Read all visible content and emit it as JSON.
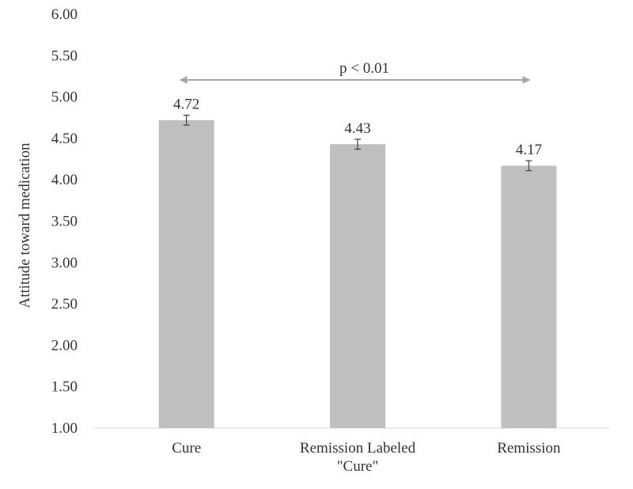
{
  "chart_data": {
    "type": "bar",
    "title": "",
    "xlabel": "",
    "ylabel": "Attitude toward medication",
    "ylim": [
      1.0,
      6.0
    ],
    "y_ticks": [
      "1.00",
      "1.50",
      "2.00",
      "2.50",
      "3.00",
      "3.50",
      "4.00",
      "4.50",
      "5.00",
      "5.50",
      "6.00"
    ],
    "categories": [
      [
        "Cure"
      ],
      [
        "Remission Labeled",
        "\"Cure\""
      ],
      [
        "Remission"
      ]
    ],
    "values": [
      4.72,
      4.43,
      4.17
    ],
    "value_labels": [
      "4.72",
      "4.43",
      "4.17"
    ],
    "error": [
      0.06,
      0.06,
      0.06
    ],
    "grid": false,
    "bar_color": "#bfbfbf",
    "annotation": {
      "text": "p < 0.01",
      "from_category": 0,
      "to_category": 2
    }
  }
}
